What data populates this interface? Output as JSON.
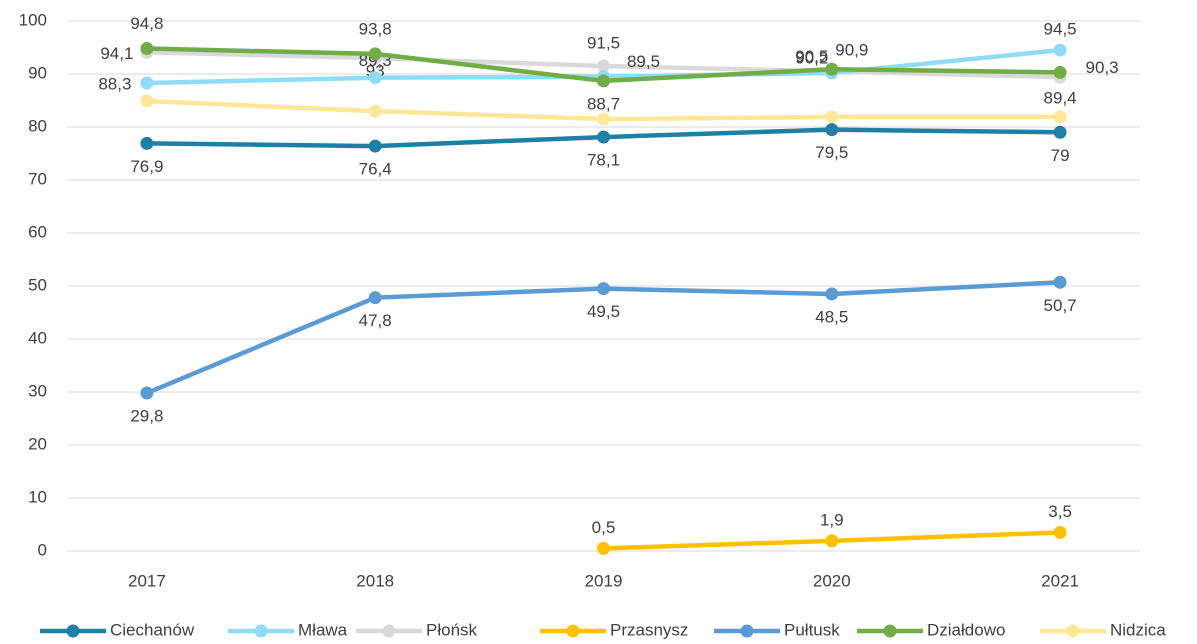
{
  "chart_data": {
    "type": "line",
    "x": [
      2017,
      2018,
      2019,
      2020,
      2021
    ],
    "xlim": [
      2016.65,
      2021.35
    ],
    "ylim": [
      0,
      100
    ],
    "yticks": [
      0,
      10,
      20,
      30,
      40,
      50,
      60,
      70,
      80,
      90,
      100
    ],
    "grid": true,
    "legend": "bottom",
    "series": [
      {
        "name": "Ciechanów",
        "color": "#1f80a6",
        "values": [
          76.9,
          76.4,
          78.1,
          79.5,
          79
        ],
        "value_labels": [
          "76,9",
          "76,4",
          "78,1",
          "79,5",
          "79"
        ]
      },
      {
        "name": "Mława",
        "color": "#8fdcf7",
        "values": [
          88.3,
          89.3,
          89.5,
          90.2,
          94.5
        ],
        "value_labels": [
          "88,3",
          "89,3",
          "89,5",
          "90,2",
          "94,5"
        ]
      },
      {
        "name": "Płońsk",
        "color": "#d9d9d9",
        "values": [
          94.1,
          93,
          91.5,
          90.5,
          89.4
        ],
        "value_labels": [
          "94,1",
          "93",
          "91,5",
          "90,5",
          "89,4"
        ]
      },
      {
        "name": "Przasnysz",
        "color": "#ffc000",
        "values": [
          null,
          null,
          0.5,
          1.9,
          3.5
        ],
        "value_labels": [
          null,
          null,
          "0,5",
          "1,9",
          "3,5"
        ]
      },
      {
        "name": "Pułtusk",
        "color": "#5b9bd5",
        "values": [
          29.8,
          47.8,
          49.5,
          48.5,
          50.7
        ],
        "value_labels": [
          "29,8",
          "47,8",
          "49,5",
          "48,5",
          "50,7"
        ]
      },
      {
        "name": "Działdowo",
        "color": "#70ad47",
        "values": [
          94.8,
          93.8,
          88.7,
          90.9,
          90.3
        ],
        "value_labels": [
          "94,8",
          "93,8",
          "88,7",
          "90,9",
          "90,3"
        ]
      },
      {
        "name": "Nidzica",
        "color": "#ffe699",
        "values": [
          84.9,
          83,
          81.5,
          81.9,
          81.9
        ]
      }
    ]
  }
}
